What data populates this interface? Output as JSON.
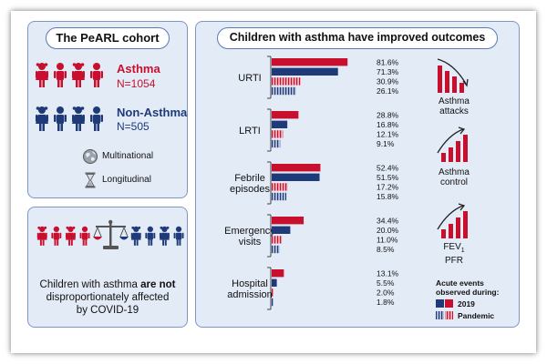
{
  "cohort": {
    "title": "The PeARL cohort",
    "asthma_label": "Asthma",
    "asthma_n": "N=1054",
    "non_asthma_label": "Non-Asthma",
    "non_asthma_n": "N=505",
    "features": [
      {
        "icon": "globe-icon",
        "label": "Multinational"
      },
      {
        "icon": "hourglass-icon",
        "label": "Longitudinal"
      }
    ]
  },
  "covid": {
    "line1_pre": "Children with asthma ",
    "line1_bold": "are not",
    "line2": "disproportionately affected",
    "line3": "by COVID-19"
  },
  "outcomes": {
    "title": "Children with asthma have improved outcomes",
    "side_labels": [
      {
        "text": "Asthma",
        "text2": "attacks"
      },
      {
        "text": "Asthma",
        "text2": "control"
      },
      {
        "text": "FEV",
        "sub": "1",
        "text2": "PFR"
      }
    ],
    "legend": {
      "title_line1": "Acute events",
      "title_line2": "observed during:",
      "entries": [
        "2019",
        "Pandemic"
      ]
    }
  },
  "chart_data": {
    "type": "bar",
    "orientation": "horizontal",
    "categories": [
      [
        "URTI"
      ],
      [
        "LRTI"
      ],
      [
        "Febrile",
        "episodes"
      ],
      [
        "Emergency",
        "visits"
      ],
      [
        "Hospital",
        "admission"
      ]
    ],
    "series": [
      {
        "group": "asthma",
        "period": "2019",
        "color": "#c8102e",
        "pattern": "solid",
        "values": [
          81.6,
          28.8,
          52.4,
          34.4,
          13.1
        ]
      },
      {
        "group": "non-asthma",
        "period": "2019",
        "color": "#1f3a78",
        "pattern": "solid",
        "values": [
          71.3,
          16.8,
          51.5,
          20.0,
          5.5
        ]
      },
      {
        "group": "asthma",
        "period": "Pandemic",
        "color": "#c8102e",
        "pattern": "hatched",
        "values": [
          30.9,
          12.1,
          17.2,
          11.0,
          2.0
        ]
      },
      {
        "group": "non-asthma",
        "period": "Pandemic",
        "color": "#1f3a78",
        "pattern": "hatched",
        "values": [
          26.1,
          9.1,
          15.8,
          8.5,
          1.8
        ]
      }
    ],
    "value_labels": [
      [
        "81.6%",
        "71.3%",
        "30.9%",
        "26.1%"
      ],
      [
        "28.8%",
        "16.8%",
        "12.1%",
        "9.1%"
      ],
      [
        "52.4%",
        "51.5%",
        "17.2%",
        "15.8%"
      ],
      [
        "34.4%",
        "20.0%",
        "11.0%",
        "8.5%"
      ],
      [
        "13.1%",
        "5.5%",
        "2.0%",
        "1.8%"
      ]
    ],
    "xlim": [
      0,
      100
    ],
    "grid": false,
    "legend": "right"
  }
}
